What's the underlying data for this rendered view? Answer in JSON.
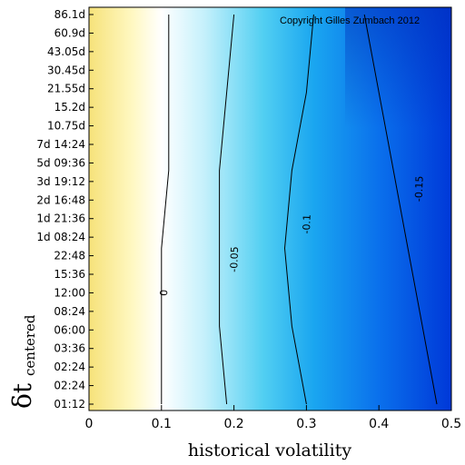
{
  "chart_data": {
    "type": "heatmap",
    "xlabel": "historical volatility",
    "ylabel_main": "δt",
    "ylabel_sub": "centered",
    "copyright": "Copyright Gilles Zumbach 2012",
    "x_ticks": [
      "0",
      "0.1",
      "0.2",
      "0.3",
      "0.4",
      "0.5"
    ],
    "x_tick_values": [
      0,
      0.1,
      0.2,
      0.3,
      0.4,
      0.5
    ],
    "xlim": [
      0,
      0.5
    ],
    "y_ticks": [
      "01:12",
      "02:24",
      "02:24",
      "03:36",
      "06:00",
      "08:24",
      "12:00",
      "15:36",
      "22:48",
      "1d 08:24",
      "1d 21:36",
      "2d 16:48",
      "3d 19:12",
      "5d 09:36",
      "7d 14:24",
      "10.75d",
      "15.2d",
      "21.55d",
      "30.45d",
      "43.05d",
      "60.9d",
      "86.1d"
    ],
    "contours": [
      {
        "level": 0,
        "label": "0",
        "x": [
          0.1,
          0.1,
          0.1,
          0.11,
          0.11,
          0.11
        ],
        "label_pos": [
          0.108,
          6
        ]
      },
      {
        "level": -0.05,
        "label": "-0.05",
        "x": [
          0.19,
          0.18,
          0.18,
          0.18,
          0.19,
          0.2
        ],
        "label_pos": [
          0.205,
          7.8
        ]
      },
      {
        "level": -0.1,
        "label": "-0.1",
        "x": [
          0.3,
          0.28,
          0.27,
          0.28,
          0.3,
          0.31
        ],
        "label_pos": [
          0.305,
          9.7
        ]
      },
      {
        "level": -0.15,
        "label": "-0.15",
        "x": [
          0.48,
          0.46,
          0.44,
          0.42,
          0.4,
          0.38
        ],
        "label_pos": [
          0.46,
          11.6
        ]
      }
    ],
    "colors": {
      "positive": "#fff7b0",
      "zero": "#ffffff",
      "mid": "#40c8ee",
      "negative": "#0040e0"
    }
  }
}
